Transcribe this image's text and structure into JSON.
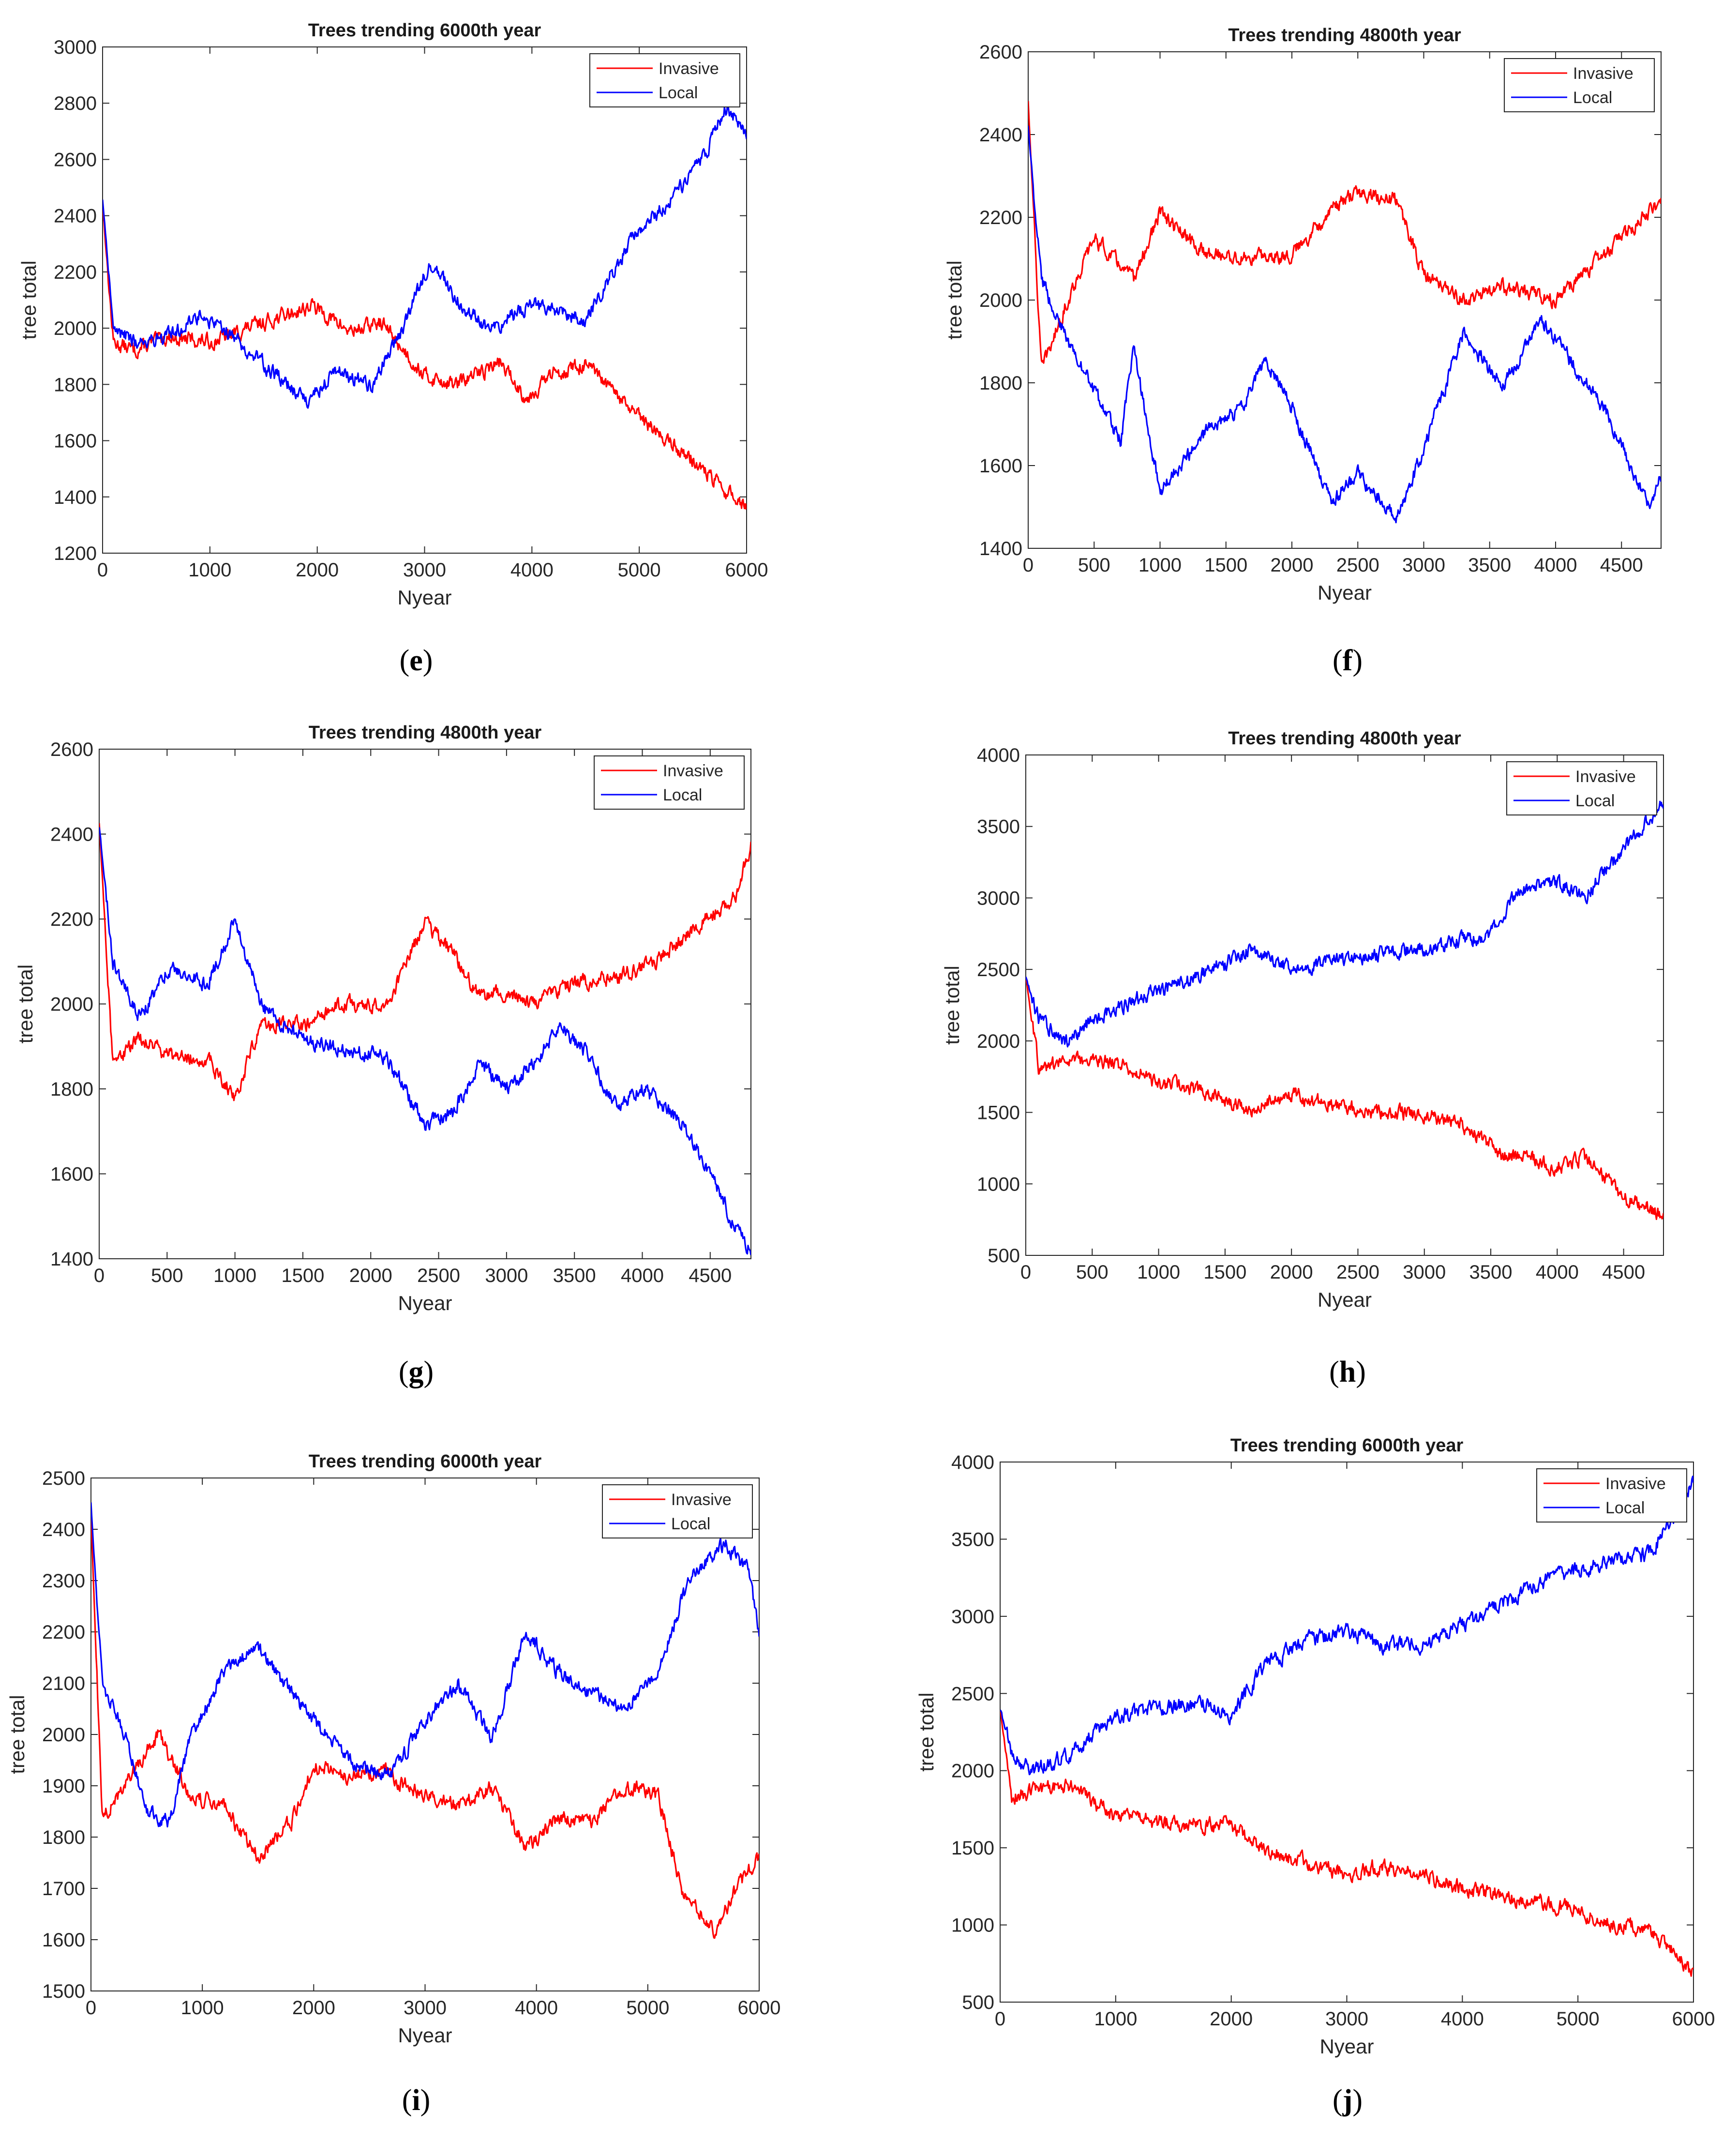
{
  "chart_data": [
    {
      "panel": "e",
      "type": "line",
      "title": "Trees trending 6000th year",
      "xlabel": "Nyear",
      "ylabel": "tree total",
      "xlim": [
        0,
        6000
      ],
      "ylim": [
        1200,
        3000
      ],
      "xticks": [
        0,
        1000,
        2000,
        3000,
        4000,
        5000,
        6000
      ],
      "yticks": [
        1200,
        1400,
        1600,
        1800,
        2000,
        2200,
        2400,
        2600,
        2800,
        3000
      ],
      "legend": "top-right",
      "series": [
        {
          "name": "Invasive",
          "color": "#ff0000",
          "x": [
            0,
            100,
            300,
            600,
            1000,
            1500,
            1950,
            2300,
            2600,
            3000,
            3300,
            3700,
            3950,
            4200,
            4500,
            5000,
            5500,
            5800,
            6000
          ],
          "y": [
            2440,
            1950,
            1920,
            1970,
            1950,
            2020,
            2080,
            1990,
            2020,
            1830,
            1800,
            1880,
            1750,
            1840,
            1870,
            1680,
            1530,
            1420,
            1370
          ]
        },
        {
          "name": "Local",
          "color": "#0000ff",
          "x": [
            0,
            100,
            300,
            600,
            900,
            1200,
            1500,
            1900,
            2200,
            2500,
            2800,
            3050,
            3300,
            3600,
            4000,
            4500,
            4700,
            5000,
            5300,
            5600,
            5800,
            6000
          ],
          "y": [
            2460,
            2000,
            1950,
            1970,
            2050,
            1980,
            1870,
            1740,
            1850,
            1790,
            2000,
            2240,
            2100,
            2000,
            2080,
            2030,
            2170,
            2350,
            2460,
            2600,
            2790,
            2690
          ]
        }
      ]
    },
    {
      "panel": "f",
      "type": "line",
      "title": "Trees trending 4800th year",
      "xlabel": "Nyear",
      "ylabel": "tree total",
      "xlim": [
        0,
        4800
      ],
      "ylim": [
        1400,
        2600
      ],
      "xticks": [
        0,
        500,
        1000,
        1500,
        2000,
        2500,
        3000,
        3500,
        4000,
        4500
      ],
      "yticks": [
        1400,
        1600,
        1800,
        2000,
        2200,
        2400,
        2600
      ],
      "legend": "top-right",
      "series": [
        {
          "name": "Invasive",
          "color": "#ff0000",
          "x": [
            0,
            100,
            300,
            500,
            800,
            1000,
            1300,
            1600,
            2000,
            2300,
            2500,
            2800,
            3000,
            3300,
            3600,
            4000,
            4400,
            4800
          ],
          "y": [
            2480,
            1830,
            2000,
            2150,
            2050,
            2210,
            2120,
            2100,
            2110,
            2220,
            2260,
            2240,
            2060,
            2000,
            2030,
            2000,
            2120,
            2240
          ]
        },
        {
          "name": "Local",
          "color": "#0000ff",
          "x": [
            0,
            100,
            300,
            500,
            700,
            800,
            1000,
            1200,
            1400,
            1600,
            1800,
            2000,
            2300,
            2500,
            2800,
            3000,
            3300,
            3600,
            3900,
            4100,
            4400,
            4700,
            4800
          ],
          "y": [
            2420,
            2050,
            1900,
            1780,
            1660,
            1880,
            1540,
            1620,
            1700,
            1730,
            1860,
            1740,
            1510,
            1580,
            1470,
            1640,
            1920,
            1790,
            1950,
            1860,
            1720,
            1500,
            1570
          ]
        }
      ]
    },
    {
      "panel": "g",
      "type": "line",
      "title": "Trees trending 4800th year",
      "xlabel": "Nyear",
      "ylabel": "tree total",
      "xlim": [
        0,
        4800
      ],
      "ylim": [
        1400,
        2600
      ],
      "xticks": [
        0,
        500,
        1000,
        1500,
        2000,
        2500,
        3000,
        3500,
        4000,
        4500
      ],
      "yticks": [
        1400,
        1600,
        1800,
        2000,
        2200,
        2400,
        2600
      ],
      "legend": "top-right",
      "series": [
        {
          "name": "Invasive",
          "color": "#ff0000",
          "x": [
            0,
            100,
            300,
            500,
            800,
            1000,
            1200,
            1500,
            1800,
            2100,
            2400,
            2600,
            2800,
            3000,
            3200,
            3500,
            3800,
            4100,
            4400,
            4700,
            4800
          ],
          "y": [
            2430,
            1860,
            1920,
            1880,
            1870,
            1780,
            1960,
            1950,
            2000,
            1990,
            2190,
            2120,
            2020,
            2030,
            2000,
            2050,
            2060,
            2100,
            2180,
            2260,
            2380
          ]
        },
        {
          "name": "Local",
          "color": "#0000ff",
          "x": [
            0,
            100,
            300,
            500,
            800,
            1000,
            1200,
            1500,
            1800,
            2100,
            2400,
            2600,
            2800,
            3000,
            3200,
            3400,
            3600,
            3800,
            4000,
            4300,
            4500,
            4700,
            4800
          ],
          "y": [
            2420,
            2100,
            1970,
            2080,
            2050,
            2200,
            1990,
            1920,
            1890,
            1880,
            1720,
            1740,
            1860,
            1800,
            1860,
            1950,
            1880,
            1760,
            1800,
            1720,
            1600,
            1460,
            1420
          ]
        }
      ]
    },
    {
      "panel": "h",
      "type": "line",
      "title": "Trees trending 4800th year",
      "xlabel": "Nyear",
      "ylabel": "tree total",
      "xlim": [
        0,
        4800
      ],
      "ylim": [
        500,
        4000
      ],
      "xticks": [
        0,
        500,
        1000,
        1500,
        2000,
        2500,
        3000,
        3500,
        4000,
        4500
      ],
      "yticks": [
        500,
        1000,
        1500,
        2000,
        2500,
        3000,
        3500,
        4000
      ],
      "legend": "top-right",
      "series": [
        {
          "name": "Invasive",
          "color": "#ff0000",
          "x": [
            0,
            100,
            300,
            500,
            800,
            1000,
            1300,
            1700,
            2000,
            2300,
            2600,
            3000,
            3300,
            3600,
            3800,
            4000,
            4200,
            4500,
            4800
          ],
          "y": [
            2450,
            1800,
            1850,
            1880,
            1800,
            1700,
            1650,
            1520,
            1620,
            1560,
            1500,
            1480,
            1400,
            1200,
            1180,
            1120,
            1200,
            900,
            780
          ]
        },
        {
          "name": "Local",
          "color": "#0000ff",
          "x": [
            0,
            100,
            300,
            600,
            1000,
            1300,
            1700,
            2000,
            2300,
            2600,
            3000,
            3300,
            3500,
            3700,
            4000,
            4200,
            4500,
            4800
          ],
          "y": [
            2450,
            2150,
            2000,
            2200,
            2350,
            2450,
            2650,
            2500,
            2550,
            2600,
            2650,
            2700,
            2750,
            3050,
            3100,
            3000,
            3350,
            3650
          ]
        }
      ]
    },
    {
      "panel": "i",
      "type": "line",
      "title": "Trees trending 6000th year",
      "xlabel": "Nyear",
      "ylabel": "tree total",
      "xlim": [
        0,
        6000
      ],
      "ylim": [
        1500,
        2500
      ],
      "xticks": [
        0,
        1000,
        2000,
        3000,
        4000,
        5000,
        6000
      ],
      "yticks": [
        1500,
        1600,
        1700,
        1800,
        1900,
        2000,
        2100,
        2200,
        2300,
        2400,
        2500
      ],
      "legend": "top-right",
      "series": [
        {
          "name": "Invasive",
          "color": "#ff0000",
          "x": [
            0,
            100,
            300,
            600,
            900,
            1200,
            1500,
            1800,
            2000,
            2300,
            2600,
            3000,
            3300,
            3600,
            3900,
            4200,
            4500,
            4800,
            5100,
            5300,
            5600,
            5800,
            6000
          ],
          "y": [
            2430,
            1840,
            1900,
            2000,
            1880,
            1860,
            1760,
            1830,
            1940,
            1920,
            1930,
            1880,
            1860,
            1900,
            1780,
            1840,
            1830,
            1900,
            1880,
            1700,
            1620,
            1700,
            1760
          ]
        },
        {
          "name": "Local",
          "color": "#0000ff",
          "x": [
            0,
            100,
            300,
            500,
            700,
            900,
            1200,
            1500,
            1800,
            2100,
            2400,
            2700,
            3000,
            3300,
            3600,
            3900,
            4200,
            4500,
            4800,
            5100,
            5400,
            5700,
            5900,
            6000
          ],
          "y": [
            2450,
            2100,
            2000,
            1850,
            1830,
            2000,
            2120,
            2170,
            2080,
            2000,
            1940,
            1920,
            2030,
            2100,
            1990,
            2200,
            2120,
            2080,
            2050,
            2130,
            2320,
            2370,
            2320,
            2200
          ]
        }
      ]
    },
    {
      "panel": "j",
      "type": "line",
      "title": "Trees trending 6000th year",
      "xlabel": "Nyear",
      "ylabel": "tree total",
      "xlim": [
        0,
        6000
      ],
      "ylim": [
        500,
        4000
      ],
      "xticks": [
        0,
        1000,
        2000,
        3000,
        4000,
        5000,
        6000
      ],
      "yticks": [
        500,
        1000,
        1500,
        2000,
        2500,
        3000,
        3500,
        4000
      ],
      "legend": "top-right",
      "series": [
        {
          "name": "Invasive",
          "color": "#ff0000",
          "x": [
            0,
            100,
            300,
            600,
            1000,
            1500,
            2000,
            2300,
            2700,
            3000,
            3300,
            3600,
            4000,
            4300,
            4600,
            5000,
            5300,
            5600,
            5800,
            6000
          ],
          "y": [
            2400,
            1830,
            1880,
            1900,
            1700,
            1650,
            1650,
            1480,
            1400,
            1330,
            1380,
            1350,
            1230,
            1200,
            1150,
            1100,
            1000,
            980,
            850,
            680
          ]
        },
        {
          "name": "Local",
          "color": "#0000ff",
          "x": [
            0,
            100,
            300,
            600,
            1000,
            1500,
            1800,
            2000,
            2300,
            2700,
            3000,
            3300,
            3700,
            4000,
            4300,
            4600,
            5000,
            5300,
            5600,
            5800,
            6000
          ],
          "y": [
            2400,
            2100,
            2000,
            2100,
            2350,
            2420,
            2430,
            2350,
            2700,
            2850,
            2900,
            2800,
            2820,
            2950,
            3050,
            3200,
            3300,
            3350,
            3400,
            3600,
            3870
          ]
        }
      ]
    }
  ],
  "captions": [
    {
      "open": "(",
      "letter": "e",
      "close": ")"
    },
    {
      "open": "(",
      "letter": "f",
      "close": ")"
    },
    {
      "open": "(",
      "letter": "g",
      "close": ")"
    },
    {
      "open": "(",
      "letter": "h",
      "close": ")"
    },
    {
      "open": "(",
      "letter": "i",
      "close": ")"
    },
    {
      "open": "(",
      "letter": "j",
      "close": ")"
    }
  ]
}
